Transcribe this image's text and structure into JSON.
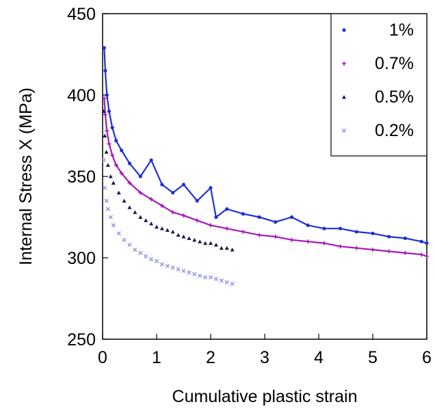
{
  "chart_data": {
    "type": "scatter",
    "xlabel": "Cumulative plastic strain",
    "ylabel": "Internal Stress X (MPa)",
    "xlim": [
      0,
      6
    ],
    "ylim": [
      250,
      450
    ],
    "x_ticks": [
      "0",
      "1",
      "2",
      "3",
      "4",
      "5",
      "6"
    ],
    "y_ticks": [
      "250",
      "300",
      "350",
      "400",
      "450"
    ],
    "grid": false,
    "legend_position": "top-right",
    "series": [
      {
        "name": "1%",
        "color": "#1f2fd8",
        "marker": "dot",
        "fit_curve": true,
        "x": [
          0.03,
          0.05,
          0.08,
          0.12,
          0.18,
          0.25,
          0.35,
          0.5,
          0.7,
          0.9,
          1.1,
          1.3,
          1.5,
          1.75,
          2.0,
          2.1,
          2.3,
          2.6,
          2.9,
          3.2,
          3.5,
          3.8,
          4.1,
          4.4,
          4.7,
          5.0,
          5.3,
          5.6,
          5.9,
          6.0
        ],
        "y": [
          429,
          415,
          400,
          390,
          380,
          372,
          366,
          358,
          350,
          360,
          345,
          340,
          345,
          335,
          343,
          325,
          330,
          327,
          325,
          322,
          325,
          320,
          318,
          318,
          316,
          315,
          313,
          312,
          310,
          309
        ]
      },
      {
        "name": "0.7%",
        "color": "#a21ab5",
        "marker": "plus",
        "fit_curve": true,
        "x": [
          0.03,
          0.05,
          0.08,
          0.12,
          0.18,
          0.25,
          0.35,
          0.5,
          0.7,
          0.9,
          1.1,
          1.3,
          1.5,
          1.75,
          2.0,
          2.3,
          2.6,
          2.9,
          3.2,
          3.5,
          3.8,
          4.1,
          4.4,
          4.7,
          5.0,
          5.3,
          5.6,
          5.9,
          6.0
        ],
        "y": [
          398,
          388,
          378,
          370,
          363,
          357,
          352,
          346,
          340,
          336,
          332,
          328,
          326,
          323,
          320,
          318,
          316,
          314,
          313,
          311,
          310,
          309,
          307,
          306,
          305,
          304,
          303,
          302,
          301
        ]
      },
      {
        "name": "0.5%",
        "color": "#16174f",
        "marker": "triangle",
        "fit_curve": false,
        "x": [
          0.02,
          0.04,
          0.07,
          0.1,
          0.15,
          0.2,
          0.3,
          0.4,
          0.5,
          0.6,
          0.7,
          0.8,
          0.9,
          1.0,
          1.1,
          1.2,
          1.3,
          1.4,
          1.5,
          1.6,
          1.7,
          1.8,
          1.9,
          2.0,
          2.1,
          2.2,
          2.3,
          2.4
        ],
        "y": [
          390,
          375,
          365,
          357,
          350,
          346,
          340,
          335,
          331,
          328,
          325,
          323,
          321,
          319,
          318,
          317,
          316,
          314,
          313,
          312,
          311,
          310,
          309,
          309,
          308,
          306,
          306,
          305
        ]
      },
      {
        "name": "0.2%",
        "color": "#9090e0",
        "marker": "cross",
        "fit_curve": false,
        "x": [
          0.02,
          0.04,
          0.07,
          0.1,
          0.15,
          0.2,
          0.3,
          0.4,
          0.5,
          0.6,
          0.7,
          0.8,
          0.9,
          1.0,
          1.1,
          1.2,
          1.3,
          1.4,
          1.5,
          1.6,
          1.7,
          1.8,
          1.9,
          2.0,
          2.1,
          2.2,
          2.3,
          2.4
        ],
        "y": [
          360,
          343,
          335,
          330,
          325,
          320,
          315,
          311,
          308,
          305,
          303,
          301,
          299,
          298,
          296,
          295,
          294,
          293,
          292,
          291,
          290,
          289,
          288,
          288,
          287,
          286,
          285,
          284
        ]
      }
    ]
  }
}
